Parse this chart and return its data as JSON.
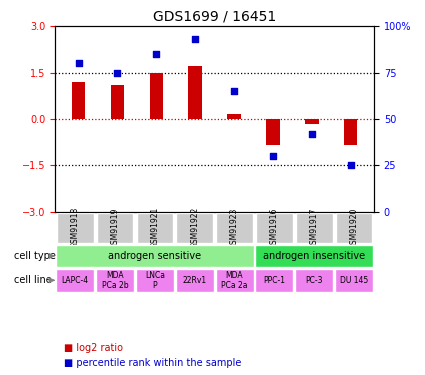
{
  "title": "GDS1699 / 16451",
  "samples": [
    "GSM91918",
    "GSM91919",
    "GSM91921",
    "GSM91922",
    "GSM91923",
    "GSM91916",
    "GSM91917",
    "GSM91920"
  ],
  "log2_ratio": [
    1.2,
    1.1,
    1.5,
    1.7,
    0.15,
    -0.85,
    -0.15,
    -0.85
  ],
  "percentile_rank": [
    80,
    75,
    85,
    93,
    65,
    30,
    42,
    25
  ],
  "cell_type_groups": [
    {
      "label": "androgen sensitive",
      "start": 0,
      "end": 5,
      "color": "#90ee90"
    },
    {
      "label": "androgen insensitive",
      "start": 5,
      "end": 8,
      "color": "#33dd55"
    }
  ],
  "cell_lines": [
    "LAPC-4",
    "MDA\nPCa 2b",
    "LNCa\nP",
    "22Rv1",
    "MDA\nPCa 2a",
    "PPC-1",
    "PC-3",
    "DU 145"
  ],
  "cell_line_color": "#ee82ee",
  "gsm_bg_color": "#cccccc",
  "bar_color": "#cc0000",
  "dot_color": "#0000cc",
  "ylim_left": [
    -3,
    3
  ],
  "ylim_right": [
    0,
    100
  ],
  "yticks_left": [
    -3,
    -1.5,
    0,
    1.5,
    3
  ],
  "yticks_right": [
    0,
    25,
    50,
    75,
    100
  ],
  "hline_positions": [
    -1.5,
    0,
    1.5
  ],
  "legend_labels": [
    "log2 ratio",
    "percentile rank within the sample"
  ]
}
